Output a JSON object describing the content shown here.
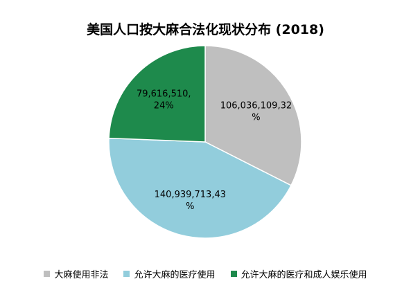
{
  "chart_data": {
    "type": "pie",
    "title": "美国人口按大麻合法化现状分布 (2018)",
    "series": [
      {
        "name": "大麻使用非法",
        "value": 106036109,
        "label_lines": [
          "106,036,109,32",
          "%"
        ],
        "color": "#bfbfbf"
      },
      {
        "name": "允许大麻的医疗使用",
        "value": 140939713,
        "label_lines": [
          "140,939,713,43",
          "%"
        ],
        "color": "#92cddc"
      },
      {
        "name": "允许大麻的医疗和成人娱乐使用",
        "value": 79616510,
        "label_lines": [
          "79,616,510,",
          "24%"
        ],
        "color": "#1e8a4c"
      }
    ],
    "percentages": [
      32,
      43,
      24
    ],
    "legend_position": "bottom"
  }
}
